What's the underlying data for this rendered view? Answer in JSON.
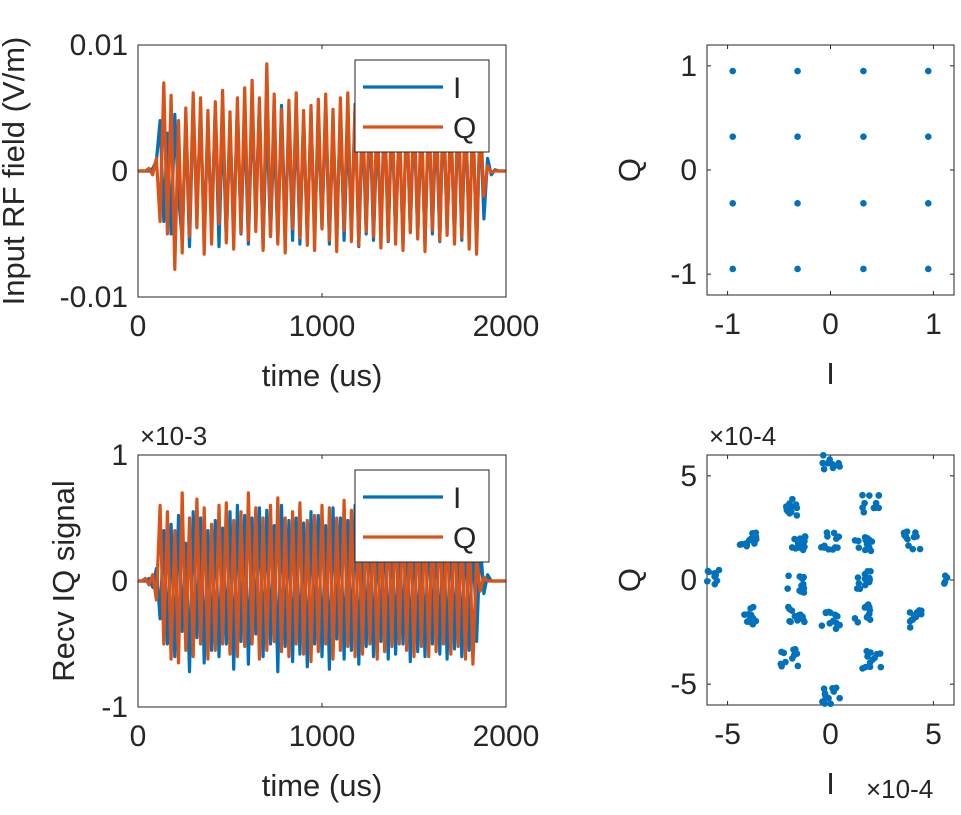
{
  "chart_data": [
    {
      "type": "line",
      "title": "",
      "xlabel": "time (us)",
      "ylabel": "Input RF field (V/m)",
      "xlim": [
        0,
        2000
      ],
      "ylim": [
        -0.01,
        0.01
      ],
      "xticks": [
        0,
        1000,
        2000
      ],
      "xtick_labels": [
        "0",
        "1000",
        "2000"
      ],
      "yticks": [
        0.01,
        0,
        -0.01
      ],
      "ytick_labels": [
        "0.01",
        "0",
        "-0.01"
      ],
      "legend": {
        "position": "top-right",
        "entries": [
          "I",
          "Q"
        ]
      },
      "grid": false,
      "series": [
        {
          "name": "I",
          "color": "#0072BD",
          "x": [
            0,
            20,
            40,
            60,
            80,
            100,
            120,
            140,
            160,
            180,
            200,
            220,
            240,
            260,
            280,
            300,
            320,
            340,
            360,
            380,
            400,
            420,
            440,
            460,
            480,
            500,
            520,
            540,
            560,
            580,
            600,
            620,
            640,
            660,
            680,
            700,
            720,
            740,
            760,
            780,
            800,
            820,
            840,
            860,
            880,
            900,
            920,
            940,
            960,
            980,
            1000,
            1020,
            1040,
            1060,
            1080,
            1100,
            1120,
            1140,
            1160,
            1180,
            1200,
            1220,
            1240,
            1260,
            1280,
            1300,
            1320,
            1340,
            1360,
            1380,
            1400,
            1420,
            1440,
            1460,
            1480,
            1500,
            1520,
            1540,
            1560,
            1580,
            1600,
            1620,
            1640,
            1660,
            1680,
            1700,
            1720,
            1740,
            1760,
            1780,
            1800,
            1820,
            1840,
            1860,
            1880,
            1900,
            1920,
            1940,
            1960,
            1980,
            2000
          ],
          "values": [
            0,
            0,
            0,
            0,
            0.0002,
            0.0008,
            0.004,
            -0.004,
            0.003,
            -0.005,
            0.0045,
            -0.002,
            -0.0055,
            0.004,
            -0.006,
            0.005,
            -0.003,
            0.0045,
            -0.005,
            0.0038,
            -0.0045,
            0.005,
            -0.006,
            0.0042,
            -0.0055,
            0.0035,
            -0.0048,
            0.0052,
            -0.005,
            0.0044,
            -0.0058,
            0.0048,
            -0.003,
            0.0052,
            -0.006,
            0.0046,
            -0.0052,
            0.0034,
            -0.0056,
            0.0052,
            -0.0045,
            0.004,
            -0.0055,
            0.0048,
            -0.0058,
            0.0042,
            -0.0052,
            0.0046,
            -0.005,
            0.004,
            -0.0045,
            0.0052,
            -0.0058,
            0.0036,
            -0.005,
            0.0049,
            -0.0055,
            0.0038,
            -0.0047,
            0.0053,
            -0.006,
            0.0041,
            -0.005,
            0.0047,
            -0.0055,
            0.0034,
            -0.0046,
            0.0052,
            -0.0056,
            0.0044,
            -0.005,
            0.0038,
            -0.0058,
            0.0049,
            -0.0048,
            0.0045,
            -0.0052,
            0.0036,
            -0.0058,
            0.0047,
            -0.005,
            0.0042,
            -0.0056,
            0.0052,
            -0.0046,
            0.004,
            -0.0053,
            0.0047,
            -0.0055,
            0.0044,
            -0.0048,
            0.0039,
            -0.006,
            0.0046,
            -0.0038,
            0.001,
            -0.0003,
            0.0001,
            0,
            0,
            0
          ]
        },
        {
          "name": "Q",
          "color": "#D95319",
          "x": [
            0,
            20,
            40,
            60,
            80,
            100,
            120,
            140,
            160,
            180,
            200,
            220,
            240,
            260,
            280,
            300,
            320,
            340,
            360,
            380,
            400,
            420,
            440,
            460,
            480,
            500,
            520,
            540,
            560,
            580,
            600,
            620,
            640,
            660,
            680,
            700,
            720,
            740,
            760,
            780,
            800,
            820,
            840,
            860,
            880,
            900,
            920,
            940,
            960,
            980,
            1000,
            1020,
            1040,
            1060,
            1080,
            1100,
            1120,
            1140,
            1160,
            1180,
            1200,
            1220,
            1240,
            1260,
            1280,
            1300,
            1320,
            1340,
            1360,
            1380,
            1400,
            1420,
            1440,
            1460,
            1480,
            1500,
            1520,
            1540,
            1560,
            1580,
            1600,
            1620,
            1640,
            1660,
            1680,
            1700,
            1720,
            1740,
            1760,
            1780,
            1800,
            1820,
            1840,
            1860,
            1880,
            1900,
            1920,
            1940,
            1960,
            1980,
            2000
          ],
          "values": [
            0,
            0,
            0,
            0.0002,
            -0.0003,
            0.001,
            -0.004,
            0.007,
            -0.005,
            0.006,
            -0.0078,
            0.004,
            -0.0065,
            0.005,
            -0.0052,
            0.0062,
            -0.0045,
            0.0058,
            -0.0066,
            0.0048,
            -0.0058,
            0.0055,
            -0.0042,
            0.0064,
            -0.0057,
            0.0047,
            -0.0062,
            0.0058,
            -0.0049,
            0.0066,
            -0.0055,
            0.0072,
            -0.0048,
            0.0058,
            -0.0063,
            0.0085,
            -0.0052,
            0.0061,
            -0.0058,
            0.0049,
            -0.0065,
            0.0056,
            -0.0046,
            0.0062,
            -0.0053,
            0.0048,
            -0.0059,
            0.0052,
            -0.0063,
            0.0057,
            -0.0046,
            0.0061,
            -0.0055,
            0.0049,
            -0.0064,
            0.0058,
            -0.0047,
            0.0062,
            -0.0056,
            0.0051,
            -0.0059,
            0.0055,
            -0.0048,
            0.0063,
            -0.0052,
            0.0057,
            -0.0061,
            0.0049,
            -0.0055,
            0.0062,
            -0.0058,
            0.0046,
            -0.0063,
            0.0056,
            -0.0049,
            0.006,
            -0.0054,
            0.0052,
            -0.0064,
            0.0058,
            -0.0047,
            0.0059,
            -0.0055,
            0.0062,
            -0.0051,
            0.0048,
            -0.0058,
            0.0064,
            -0.0053,
            0.0056,
            -0.0062,
            0.0049,
            -0.0066,
            0.0045,
            -0.002,
            0.0004,
            -0.0001,
            0,
            0,
            0,
            0
          ]
        }
      ]
    },
    {
      "type": "scatter",
      "title": "",
      "xlabel": "I",
      "ylabel": "Q",
      "xlim": [
        -1.2,
        1.2
      ],
      "ylim": [
        -1.2,
        1.2
      ],
      "xticks": [
        -1,
        0,
        1
      ],
      "xtick_labels": [
        "-1",
        "0",
        "1"
      ],
      "yticks": [
        1,
        0,
        -1
      ],
      "ytick_labels": [
        "1",
        "0",
        "-1"
      ],
      "grid": false,
      "color": "#0072BD",
      "points": [
        [
          -0.95,
          0.95
        ],
        [
          -0.32,
          0.95
        ],
        [
          0.32,
          0.95
        ],
        [
          0.95,
          0.95
        ],
        [
          -0.95,
          0.32
        ],
        [
          -0.32,
          0.32
        ],
        [
          0.32,
          0.32
        ],
        [
          0.95,
          0.32
        ],
        [
          -0.95,
          -0.32
        ],
        [
          -0.32,
          -0.32
        ],
        [
          0.32,
          -0.32
        ],
        [
          0.95,
          -0.32
        ],
        [
          -0.95,
          -0.95
        ],
        [
          -0.32,
          -0.95
        ],
        [
          0.32,
          -0.95
        ],
        [
          0.95,
          -0.95
        ]
      ]
    },
    {
      "type": "line",
      "title": "",
      "xlabel": "time (us)",
      "ylabel": "Recv IQ signal",
      "y_multiplier": "×10-3",
      "xlim": [
        0,
        2000
      ],
      "ylim": [
        -1,
        1
      ],
      "xticks": [
        0,
        1000,
        2000
      ],
      "xtick_labels": [
        "0",
        "1000",
        "2000"
      ],
      "yticks": [
        1,
        0,
        -1
      ],
      "ytick_labels": [
        "1",
        "0",
        "-1"
      ],
      "legend": {
        "position": "top-right",
        "entries": [
          "I",
          "Q"
        ]
      },
      "grid": false,
      "series": [
        {
          "name": "I",
          "color": "#0072BD",
          "x": [
            0,
            20,
            40,
            60,
            80,
            100,
            120,
            140,
            160,
            180,
            200,
            220,
            240,
            260,
            280,
            300,
            320,
            340,
            360,
            380,
            400,
            420,
            440,
            460,
            480,
            500,
            520,
            540,
            560,
            580,
            600,
            620,
            640,
            660,
            680,
            700,
            720,
            740,
            760,
            780,
            800,
            820,
            840,
            860,
            880,
            900,
            920,
            940,
            960,
            980,
            1000,
            1020,
            1040,
            1060,
            1080,
            1100,
            1120,
            1140,
            1160,
            1180,
            1200,
            1220,
            1240,
            1260,
            1280,
            1300,
            1320,
            1340,
            1360,
            1380,
            1400,
            1420,
            1440,
            1460,
            1480,
            1500,
            1520,
            1540,
            1560,
            1580,
            1600,
            1620,
            1640,
            1660,
            1680,
            1700,
            1720,
            1740,
            1760,
            1780,
            1800,
            1820,
            1840,
            1860,
            1880,
            1900,
            1920,
            1940,
            1960,
            1980,
            2000
          ],
          "values": [
            0,
            0,
            0,
            0.02,
            -0.05,
            0.1,
            -0.3,
            0.4,
            -0.5,
            0.45,
            -0.6,
            0.52,
            -0.4,
            0.3,
            -0.72,
            0.55,
            -0.45,
            0.5,
            -0.65,
            0.4,
            -0.55,
            0.48,
            -0.6,
            0.42,
            -0.5,
            0.55,
            -0.7,
            0.6,
            -0.48,
            0.52,
            -0.66,
            0.5,
            -0.42,
            0.58,
            -0.6,
            0.56,
            -0.5,
            0.44,
            -0.72,
            0.6,
            -0.52,
            0.48,
            -0.64,
            0.5,
            -0.58,
            0.46,
            -0.68,
            0.55,
            -0.5,
            0.52,
            -0.6,
            0.44,
            -0.7,
            0.58,
            -0.46,
            0.5,
            -0.62,
            0.48,
            -0.55,
            0.6,
            -0.66,
            0.42,
            -0.52,
            0.56,
            -0.6,
            0.4,
            -0.48,
            0.55,
            -0.62,
            0.5,
            -0.58,
            0.46,
            -0.5,
            0.52,
            -0.64,
            0.48,
            -0.56,
            0.44,
            -0.6,
            0.52,
            -0.5,
            0.46,
            -0.58,
            0.5,
            -0.62,
            0.48,
            -0.54,
            0.42,
            -0.6,
            0.5,
            -0.55,
            0.4,
            -0.48,
            0.3,
            -0.1,
            0.05,
            0,
            0,
            0,
            0,
            0
          ]
        },
        {
          "name": "Q",
          "color": "#D95319",
          "x": [
            0,
            20,
            40,
            60,
            80,
            100,
            120,
            140,
            160,
            180,
            200,
            220,
            240,
            260,
            280,
            300,
            320,
            340,
            360,
            380,
            400,
            420,
            440,
            460,
            480,
            500,
            520,
            540,
            560,
            580,
            600,
            620,
            640,
            660,
            680,
            700,
            720,
            740,
            760,
            780,
            800,
            820,
            840,
            860,
            880,
            900,
            920,
            940,
            960,
            980,
            1000,
            1020,
            1040,
            1060,
            1080,
            1100,
            1120,
            1140,
            1160,
            1180,
            1200,
            1220,
            1240,
            1260,
            1280,
            1300,
            1320,
            1340,
            1360,
            1380,
            1400,
            1420,
            1440,
            1460,
            1480,
            1500,
            1520,
            1540,
            1560,
            1580,
            1600,
            1620,
            1640,
            1660,
            1680,
            1700,
            1720,
            1740,
            1760,
            1780,
            1800,
            1820,
            1840,
            1860,
            1880,
            1900,
            1920,
            1940,
            1960,
            1980,
            2000
          ],
          "values": [
            0,
            0,
            0.02,
            -0.03,
            0.05,
            -0.15,
            0.6,
            -0.5,
            0.55,
            -0.62,
            0.4,
            -0.65,
            0.7,
            -0.55,
            0.5,
            -0.6,
            0.65,
            -0.5,
            0.58,
            -0.62,
            0.45,
            -0.55,
            0.6,
            -0.5,
            0.62,
            -0.58,
            0.48,
            -0.6,
            0.55,
            -0.52,
            0.7,
            -0.5,
            0.58,
            -0.62,
            0.5,
            -0.55,
            0.6,
            -0.48,
            0.66,
            -0.56,
            0.5,
            -0.6,
            0.55,
            -0.5,
            0.62,
            -0.58,
            0.48,
            -0.64,
            0.52,
            -0.56,
            0.6,
            -0.5,
            0.58,
            -0.62,
            0.5,
            -0.55,
            0.64,
            -0.52,
            0.56,
            -0.6,
            0.48,
            -0.58,
            0.6,
            -0.5,
            0.55,
            -0.62,
            0.5,
            -0.56,
            0.6,
            -0.52,
            0.58,
            -0.5,
            0.62,
            -0.55,
            0.5,
            -0.6,
            0.56,
            -0.52,
            0.58,
            -0.6,
            0.5,
            -0.56,
            0.62,
            -0.5,
            0.55,
            -0.58,
            0.6,
            -0.52,
            0.48,
            -0.62,
            0.45,
            -0.66,
            0.2,
            -0.08,
            0.03,
            0,
            0,
            0,
            0,
            0,
            0
          ]
        }
      ]
    },
    {
      "type": "scatter",
      "title": "",
      "xlabel": "I",
      "ylabel": "Q",
      "x_multiplier": "×10-4",
      "y_multiplier": "×10-4",
      "xlim": [
        -6,
        6
      ],
      "ylim": [
        -6,
        6
      ],
      "xticks": [
        -5,
        0,
        5
      ],
      "xtick_labels": [
        "-5",
        "0",
        "5"
      ],
      "yticks": [
        5,
        0,
        -5
      ],
      "ytick_labels": [
        "5",
        "0",
        "-5"
      ],
      "grid": false,
      "color": "#0072BD",
      "clusters": [
        [
          -5.8,
          0.2
        ],
        [
          -4,
          1.9
        ],
        [
          -2,
          3.5
        ],
        [
          0,
          5.7
        ],
        [
          2,
          3.7
        ],
        [
          4,
          1.9
        ],
        [
          5.8,
          0
        ],
        [
          -4,
          -1.7
        ],
        [
          -2,
          -3.7
        ],
        [
          0,
          -5.6
        ],
        [
          2,
          -3.8
        ],
        [
          4,
          -1.9
        ],
        [
          -1.6,
          1.8
        ],
        [
          0,
          1.9
        ],
        [
          1.6,
          1.8
        ],
        [
          -1.7,
          -0.2
        ],
        [
          1.7,
          0
        ],
        [
          -1.6,
          -1.6
        ],
        [
          0,
          -1.9
        ],
        [
          1.6,
          -1.6
        ]
      ],
      "cluster_spread": 0.45,
      "points_per_cluster": 12
    }
  ]
}
